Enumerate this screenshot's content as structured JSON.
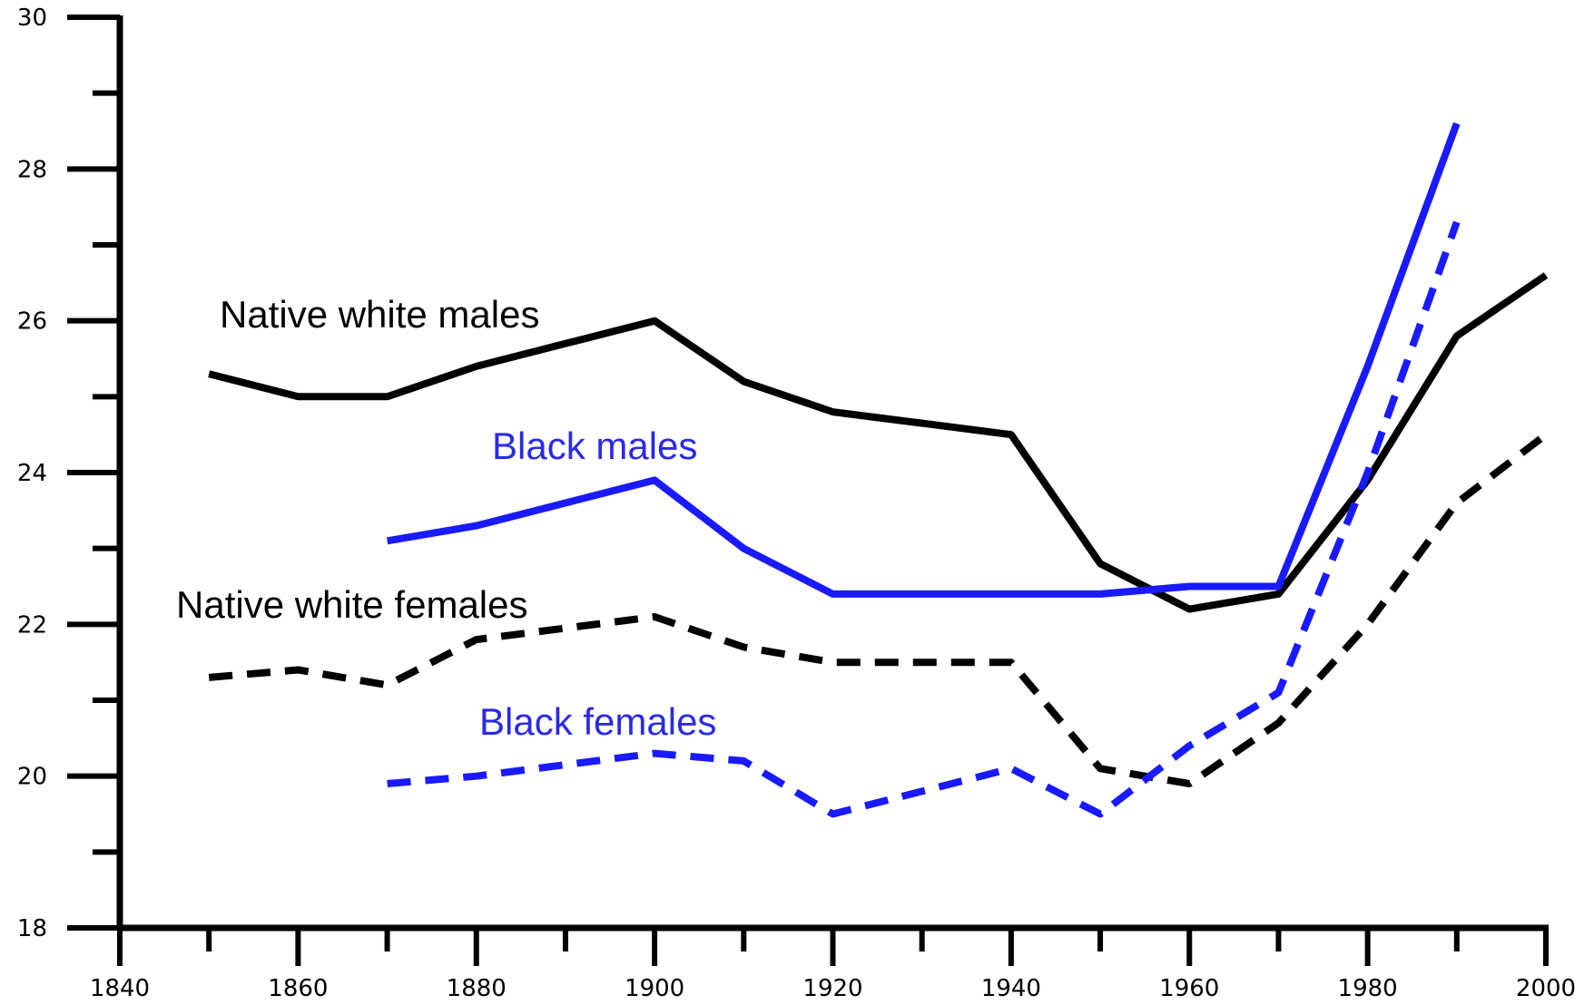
{
  "chart_data": {
    "type": "line",
    "title": "",
    "xlabel": "",
    "ylabel": "",
    "xlim": [
      1840,
      2000
    ],
    "ylim": [
      18,
      30
    ],
    "x_ticks": [
      "1840",
      "1860",
      "1880",
      "1900",
      "1920",
      "1940",
      "1960",
      "1980",
      "2000"
    ],
    "y_ticks": [
      "18",
      "20",
      "22",
      "24",
      "26",
      "28",
      "30"
    ],
    "grid": false,
    "series": [
      {
        "name": "Native white males",
        "color": "#000000",
        "dash": "solid",
        "x": [
          1850,
          1860,
          1870,
          1880,
          1890,
          1900,
          1910,
          1920,
          1930,
          1940,
          1950,
          1960,
          1970,
          1980,
          1990,
          2000
        ],
        "values": [
          25.3,
          25.0,
          25.0,
          25.4,
          25.7,
          26.0,
          25.2,
          24.8,
          24.65,
          24.5,
          22.8,
          22.2,
          22.4,
          23.9,
          25.8,
          26.6
        ]
      },
      {
        "name": "Black males",
        "color": "#1a1aff",
        "dash": "solid",
        "x": [
          1870,
          1880,
          1890,
          1900,
          1910,
          1920,
          1930,
          1940,
          1950,
          1960,
          1970,
          1980,
          1990
        ],
        "values": [
          23.1,
          23.3,
          23.6,
          23.9,
          23.0,
          22.4,
          22.4,
          22.4,
          22.4,
          22.5,
          22.5,
          25.4,
          28.6
        ]
      },
      {
        "name": "Native white females",
        "color": "#000000",
        "dash": "dashed",
        "x": [
          1850,
          1860,
          1870,
          1880,
          1890,
          1900,
          1910,
          1920,
          1930,
          1940,
          1950,
          1960,
          1970,
          1980,
          1990,
          2000
        ],
        "values": [
          21.3,
          21.4,
          21.2,
          21.8,
          21.95,
          22.1,
          21.7,
          21.5,
          21.5,
          21.5,
          20.1,
          19.9,
          20.7,
          22.0,
          23.6,
          24.5
        ]
      },
      {
        "name": "Black females",
        "color": "#1a1aff",
        "dash": "dashed",
        "x": [
          1870,
          1880,
          1890,
          1900,
          1910,
          1920,
          1930,
          1940,
          1950,
          1960,
          1970,
          1980,
          1990
        ],
        "values": [
          19.9,
          20.0,
          20.15,
          20.3,
          20.2,
          19.5,
          19.8,
          20.1,
          19.5,
          20.4,
          21.1,
          24.0,
          27.3
        ]
      }
    ],
    "annotations": [
      {
        "text": "Native white males",
        "color": "#000000"
      },
      {
        "text": "Black males",
        "color": "#2a2ae6"
      },
      {
        "text": "Native white females",
        "color": "#000000"
      },
      {
        "text": "Black females",
        "color": "#2a2ae6"
      }
    ]
  }
}
